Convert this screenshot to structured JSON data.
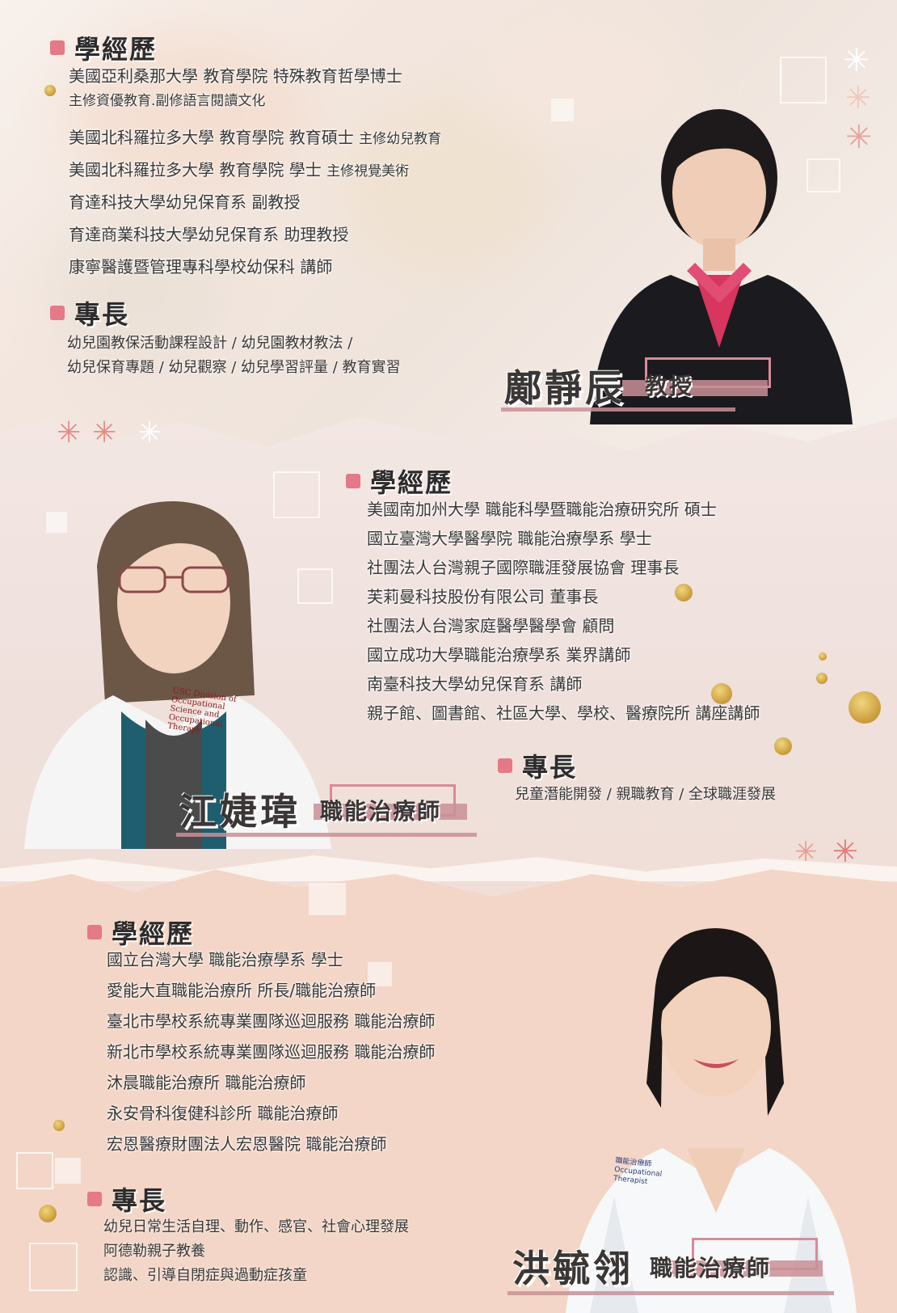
{
  "labels": {
    "education": "學經歷",
    "expertise": "專長"
  },
  "person1": {
    "name": "鄺靜辰",
    "title": "教授",
    "education": [
      "美國亞利桑那大學 教育學院 特殊教育哲學博士",
      "主修資優教育.副修語言閱讀文化",
      "美國北科羅拉多大學 教育學院 教育碩士",
      "美國北科羅拉多大學 教育學院 學士",
      "育達科技大學幼兒保育系 副教授",
      "育達商業科技大學幼兒保育系 助理教授",
      "康寧醫護暨管理專科學校幼保科 講師"
    ],
    "education_notes": {
      "masters": "主修幼兒教育",
      "bachelor": "主修視覺美術"
    },
    "expertise": [
      "幼兒園教保活動課程設計 / 幼兒園教材教法 /",
      "幼兒保育專題 / 幼兒觀察 / 幼兒學習評量  / 教育實習"
    ]
  },
  "person2": {
    "name": "江婕瑋",
    "title": "職能治療師",
    "badge_text": "USC Division of Occupational Science and Occupational Therapy",
    "education": [
      "美國南加州大學 職能科學暨職能治療研究所 碩士",
      "國立臺灣大學醫學院 職能治療學系 學士",
      "社團法人台灣親子國際職涯發展協會 理事長",
      "芙莉曼科技股份有限公司 董事長",
      "社團法人台灣家庭醫學醫學會 顧問",
      "國立成功大學職能治療學系 業界講師",
      "南臺科技大學幼兒保育系 講師",
      "親子館、圖書館、社區大學、學校、醫療院所 講座講師"
    ],
    "expertise": [
      "兒童潛能開發 / 親職教育 / 全球職涯發展"
    ]
  },
  "person3": {
    "name": "洪毓翎",
    "title": "職能治療師",
    "badge_text": "職能治療師 Occupational Therapist",
    "education": [
      "國立台灣大學 職能治療學系 學士",
      "愛能大直職能治療所 所長/職能治療師",
      "臺北市學校系統專業團隊巡迴服務 職能治療師",
      "新北市學校系統專業團隊巡迴服務 職能治療師",
      "沐晨職能治療所 職能治療師",
      "永安骨科復健科診所 職能治療師",
      "宏恩醫療財團法人宏恩醫院 職能治療師"
    ],
    "expertise": [
      "幼兒日常生活自理、動作、感官、社會心理發展",
      "阿德勒親子教養",
      "認識、引導自閉症與過動症孩童"
    ]
  },
  "colors": {
    "accent": "#e57987",
    "nameplate_bar": "#c98f97",
    "band3_background": "#f3d6c7"
  }
}
